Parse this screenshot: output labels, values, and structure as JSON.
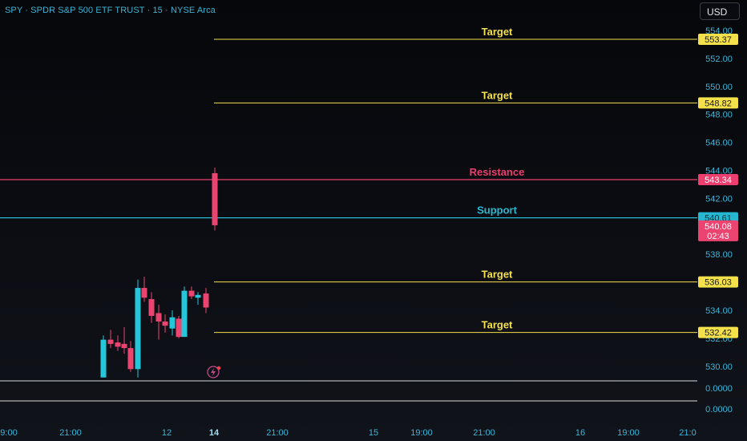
{
  "header": {
    "symbol_line": "SPY · SPDR S&P 500 ETF TRUST · 15 · NYSE Arca",
    "currency_button": "USD"
  },
  "colors": {
    "target": "#f3e04a",
    "resistance": "#ec3f6f",
    "support": "#26b8d3",
    "candle_up": "#26c6da",
    "candle_down": "#ec4470",
    "axis_text": "#3ab6d9"
  },
  "chart_data": {
    "type": "candlestick",
    "price_axis": {
      "ticks": [
        "554.00",
        "552.00",
        "550.00",
        "548.00",
        "546.00",
        "544.00",
        "542.00",
        "540.00",
        "538.00",
        "536.00",
        "534.00",
        "532.00",
        "530.00"
      ],
      "range": [
        529,
        555
      ]
    },
    "volume_axis": {
      "ticks": [
        "0.0000",
        "0.0000"
      ]
    },
    "time_axis": {
      "ticks": [
        "9:00",
        "21:00",
        "12",
        "14",
        "21:00",
        "15",
        "19:00",
        "21:00",
        "16",
        "19:00",
        "21:0"
      ]
    },
    "levels": [
      {
        "label": "Target",
        "price": 553.37,
        "price_label": "553.37",
        "kind": "target"
      },
      {
        "label": "Target",
        "price": 548.82,
        "price_label": "548.82",
        "kind": "target"
      },
      {
        "label": "Resistance",
        "price": 543.34,
        "price_label": "543.34",
        "kind": "resistance"
      },
      {
        "label": "Support",
        "price": 540.61,
        "price_label": "540.61",
        "kind": "support"
      },
      {
        "label": "Target",
        "price": 536.03,
        "price_label": "536.03",
        "kind": "target"
      },
      {
        "label": "Target",
        "price": 532.42,
        "price_label": "532.42",
        "kind": "target"
      }
    ],
    "last_price": {
      "price": 540.08,
      "label": "540.08",
      "countdown": "02:43"
    },
    "candles": [
      {
        "o": 529.2,
        "h": 532.2,
        "l": 529.2,
        "c": 531.9
      },
      {
        "o": 531.9,
        "h": 532.6,
        "l": 531.3,
        "c": 531.6
      },
      {
        "o": 531.7,
        "h": 532.2,
        "l": 531.1,
        "c": 531.4
      },
      {
        "o": 531.6,
        "h": 532.8,
        "l": 530.9,
        "c": 531.3
      },
      {
        "o": 531.3,
        "h": 531.8,
        "l": 529.6,
        "c": 529.8
      },
      {
        "o": 529.8,
        "h": 536.2,
        "l": 529.2,
        "c": 535.6
      },
      {
        "o": 535.6,
        "h": 536.4,
        "l": 534.6,
        "c": 534.9
      },
      {
        "o": 534.8,
        "h": 535.3,
        "l": 533.1,
        "c": 533.6
      },
      {
        "o": 533.8,
        "h": 534.4,
        "l": 531.9,
        "c": 533.2
      },
      {
        "o": 533.2,
        "h": 533.7,
        "l": 532.4,
        "c": 532.9
      },
      {
        "o": 532.7,
        "h": 534.0,
        "l": 532.2,
        "c": 533.5
      },
      {
        "o": 533.4,
        "h": 533.6,
        "l": 532.0,
        "c": 532.1
      },
      {
        "o": 532.1,
        "h": 535.7,
        "l": 532.1,
        "c": 535.4
      },
      {
        "o": 535.4,
        "h": 535.7,
        "l": 534.8,
        "c": 535.0
      },
      {
        "o": 534.9,
        "h": 535.3,
        "l": 534.4,
        "c": 535.1
      },
      {
        "o": 535.2,
        "h": 535.6,
        "l": 533.8,
        "c": 534.2
      },
      {
        "o": 543.8,
        "h": 544.2,
        "l": 539.7,
        "c": 540.08
      }
    ]
  }
}
